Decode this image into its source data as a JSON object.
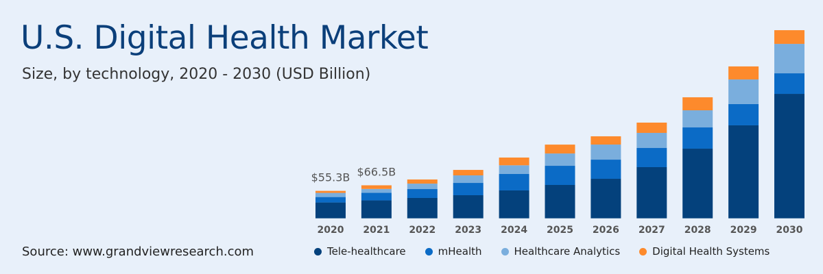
{
  "header": {
    "title": "U.S. Digital Health Market",
    "subtitle": "Size, by technology, 2020 - 2030 (USD Billion)"
  },
  "source": "Source: www.grandviewresearch.com",
  "chart_data": {
    "type": "bar",
    "stacked": true,
    "title": "U.S. Digital Health Market",
    "subtitle": "Size, by technology, 2020 - 2030 (USD Billion)",
    "categories": [
      "2020",
      "2021",
      "2022",
      "2023",
      "2024",
      "2025",
      "2026",
      "2027",
      "2028",
      "2029",
      "2030"
    ],
    "series": [
      {
        "name": "Tele-healthcare",
        "color": "#04417c",
        "values": [
          31.9,
          36.1,
          41.0,
          46.5,
          56.2,
          67.2,
          79.6,
          103.1,
          140.3,
          187.3,
          250.7
        ]
      },
      {
        "name": "mHealth",
        "color": "#0b6bc6",
        "values": [
          11.0,
          15.2,
          17.9,
          24.8,
          33.1,
          38.6,
          38.6,
          38.6,
          42.8,
          42.8,
          41.4
        ]
      },
      {
        "name": "Healthcare Analytics",
        "color": "#7aaedd",
        "values": [
          8.3,
          7.9,
          11.0,
          15.2,
          17.5,
          24.8,
          30.4,
          30.4,
          34.5,
          49.7,
          59.3
        ]
      },
      {
        "name": "Digital Health Systems",
        "color": "#fd8a2c",
        "values": [
          4.1,
          7.3,
          8.3,
          11.0,
          15.6,
          17.9,
          16.6,
          20.7,
          26.2,
          26.2,
          27.6
        ]
      }
    ],
    "annotations": [
      {
        "category": "2020",
        "text": "$55.3B"
      },
      {
        "category": "2021",
        "text": "$66.5B"
      }
    ],
    "ylim": [
      0,
      390
    ],
    "grid": false,
    "legend": "bottom"
  }
}
